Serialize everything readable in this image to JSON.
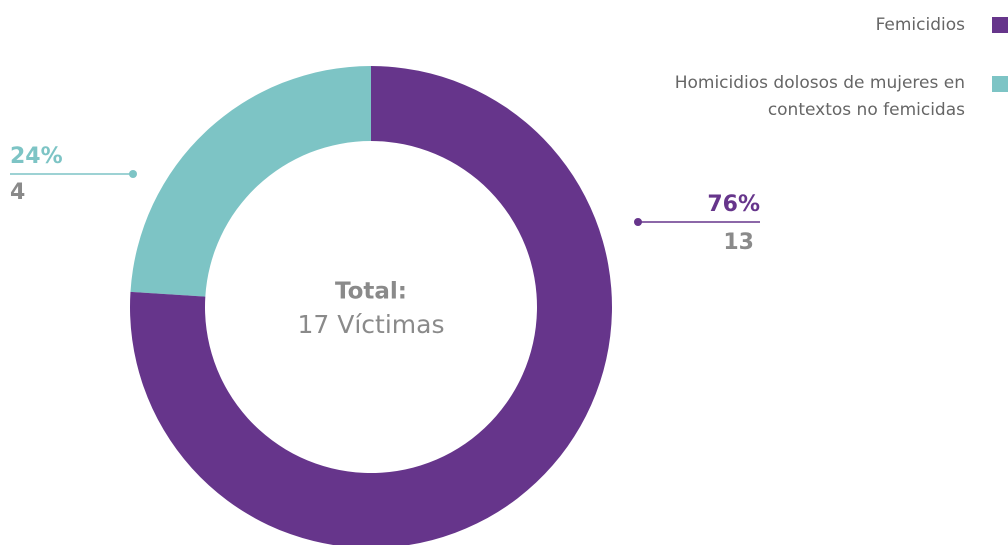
{
  "chart_data": {
    "type": "donut",
    "categories": [
      "Femicidios",
      "Homicidios dolosos de mujeres en contextos no femicidas"
    ],
    "colors": [
      "#66358b",
      "#7dc4c5"
    ],
    "values": [
      76,
      24
    ],
    "value_labels": [
      "76%",
      "24%"
    ],
    "counts": [
      13,
      4
    ],
    "center_title": "Total:",
    "center_text": "17 Víctimas"
  }
}
